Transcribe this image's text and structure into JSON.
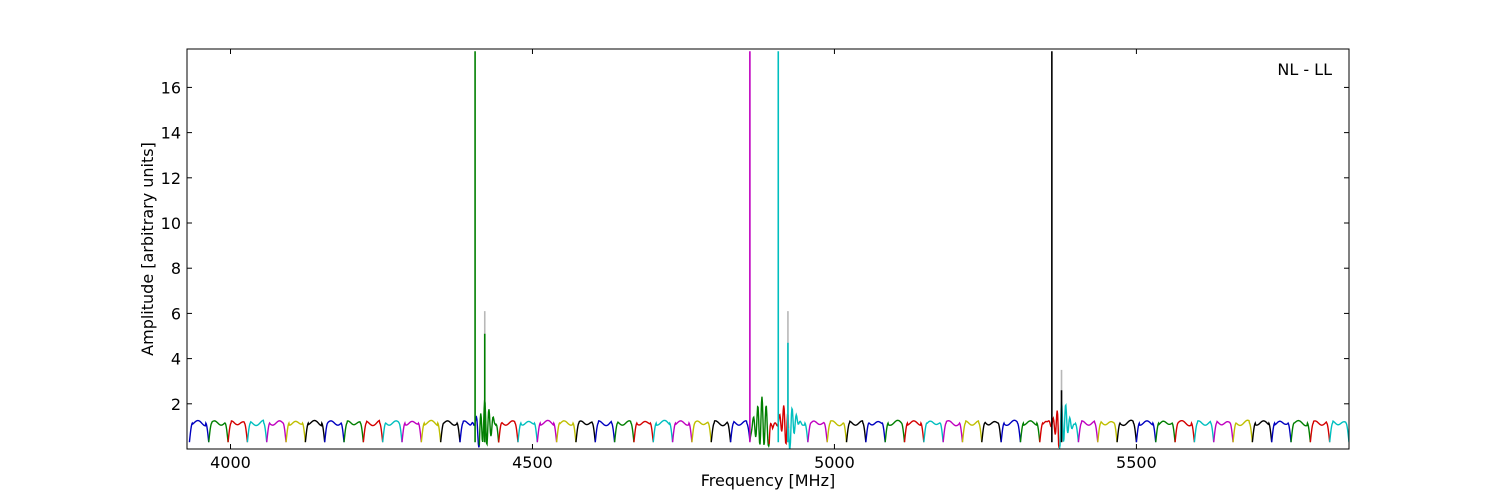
{
  "chart_data": {
    "type": "line",
    "title": "",
    "annotation": "NL - LL",
    "xlabel": "Frequency [MHz]",
    "ylabel": "Amplitude [arbitrary units]",
    "xlim": [
      3928,
      5852
    ],
    "ylim": [
      0,
      17.7
    ],
    "xticks": [
      4000,
      4500,
      5000,
      5500
    ],
    "yticks": [
      2,
      4,
      6,
      8,
      10,
      12,
      14,
      16
    ],
    "grid": false,
    "colors": [
      "#0000bf",
      "#007f00",
      "#d40000",
      "#00bfbf",
      "#bf00bf",
      "#bfbf00",
      "#000000"
    ],
    "passband": {
      "start": 3932,
      "width": 32,
      "base": 0.3,
      "top": 1.15,
      "note": "repeating sub-band amplitude response, each band colored cyclically"
    },
    "spikes": [
      {
        "x": 4405,
        "y": 17.6,
        "color": "#007f00"
      },
      {
        "x": 4421,
        "y": 5.1,
        "color": "#007f00",
        "ghost": 6.1
      },
      {
        "x": 4860,
        "y": 17.6,
        "color": "#bf00bf"
      },
      {
        "x": 4907,
        "y": 17.6,
        "color": "#00bfbf"
      },
      {
        "x": 4923,
        "y": 4.7,
        "color": "#00bfbf",
        "ghost": 6.1
      },
      {
        "x": 5360,
        "y": 17.6,
        "color": "#000000"
      },
      {
        "x": 5376,
        "y": 2.6,
        "color": "#000000",
        "ghost": 3.5
      }
    ]
  }
}
